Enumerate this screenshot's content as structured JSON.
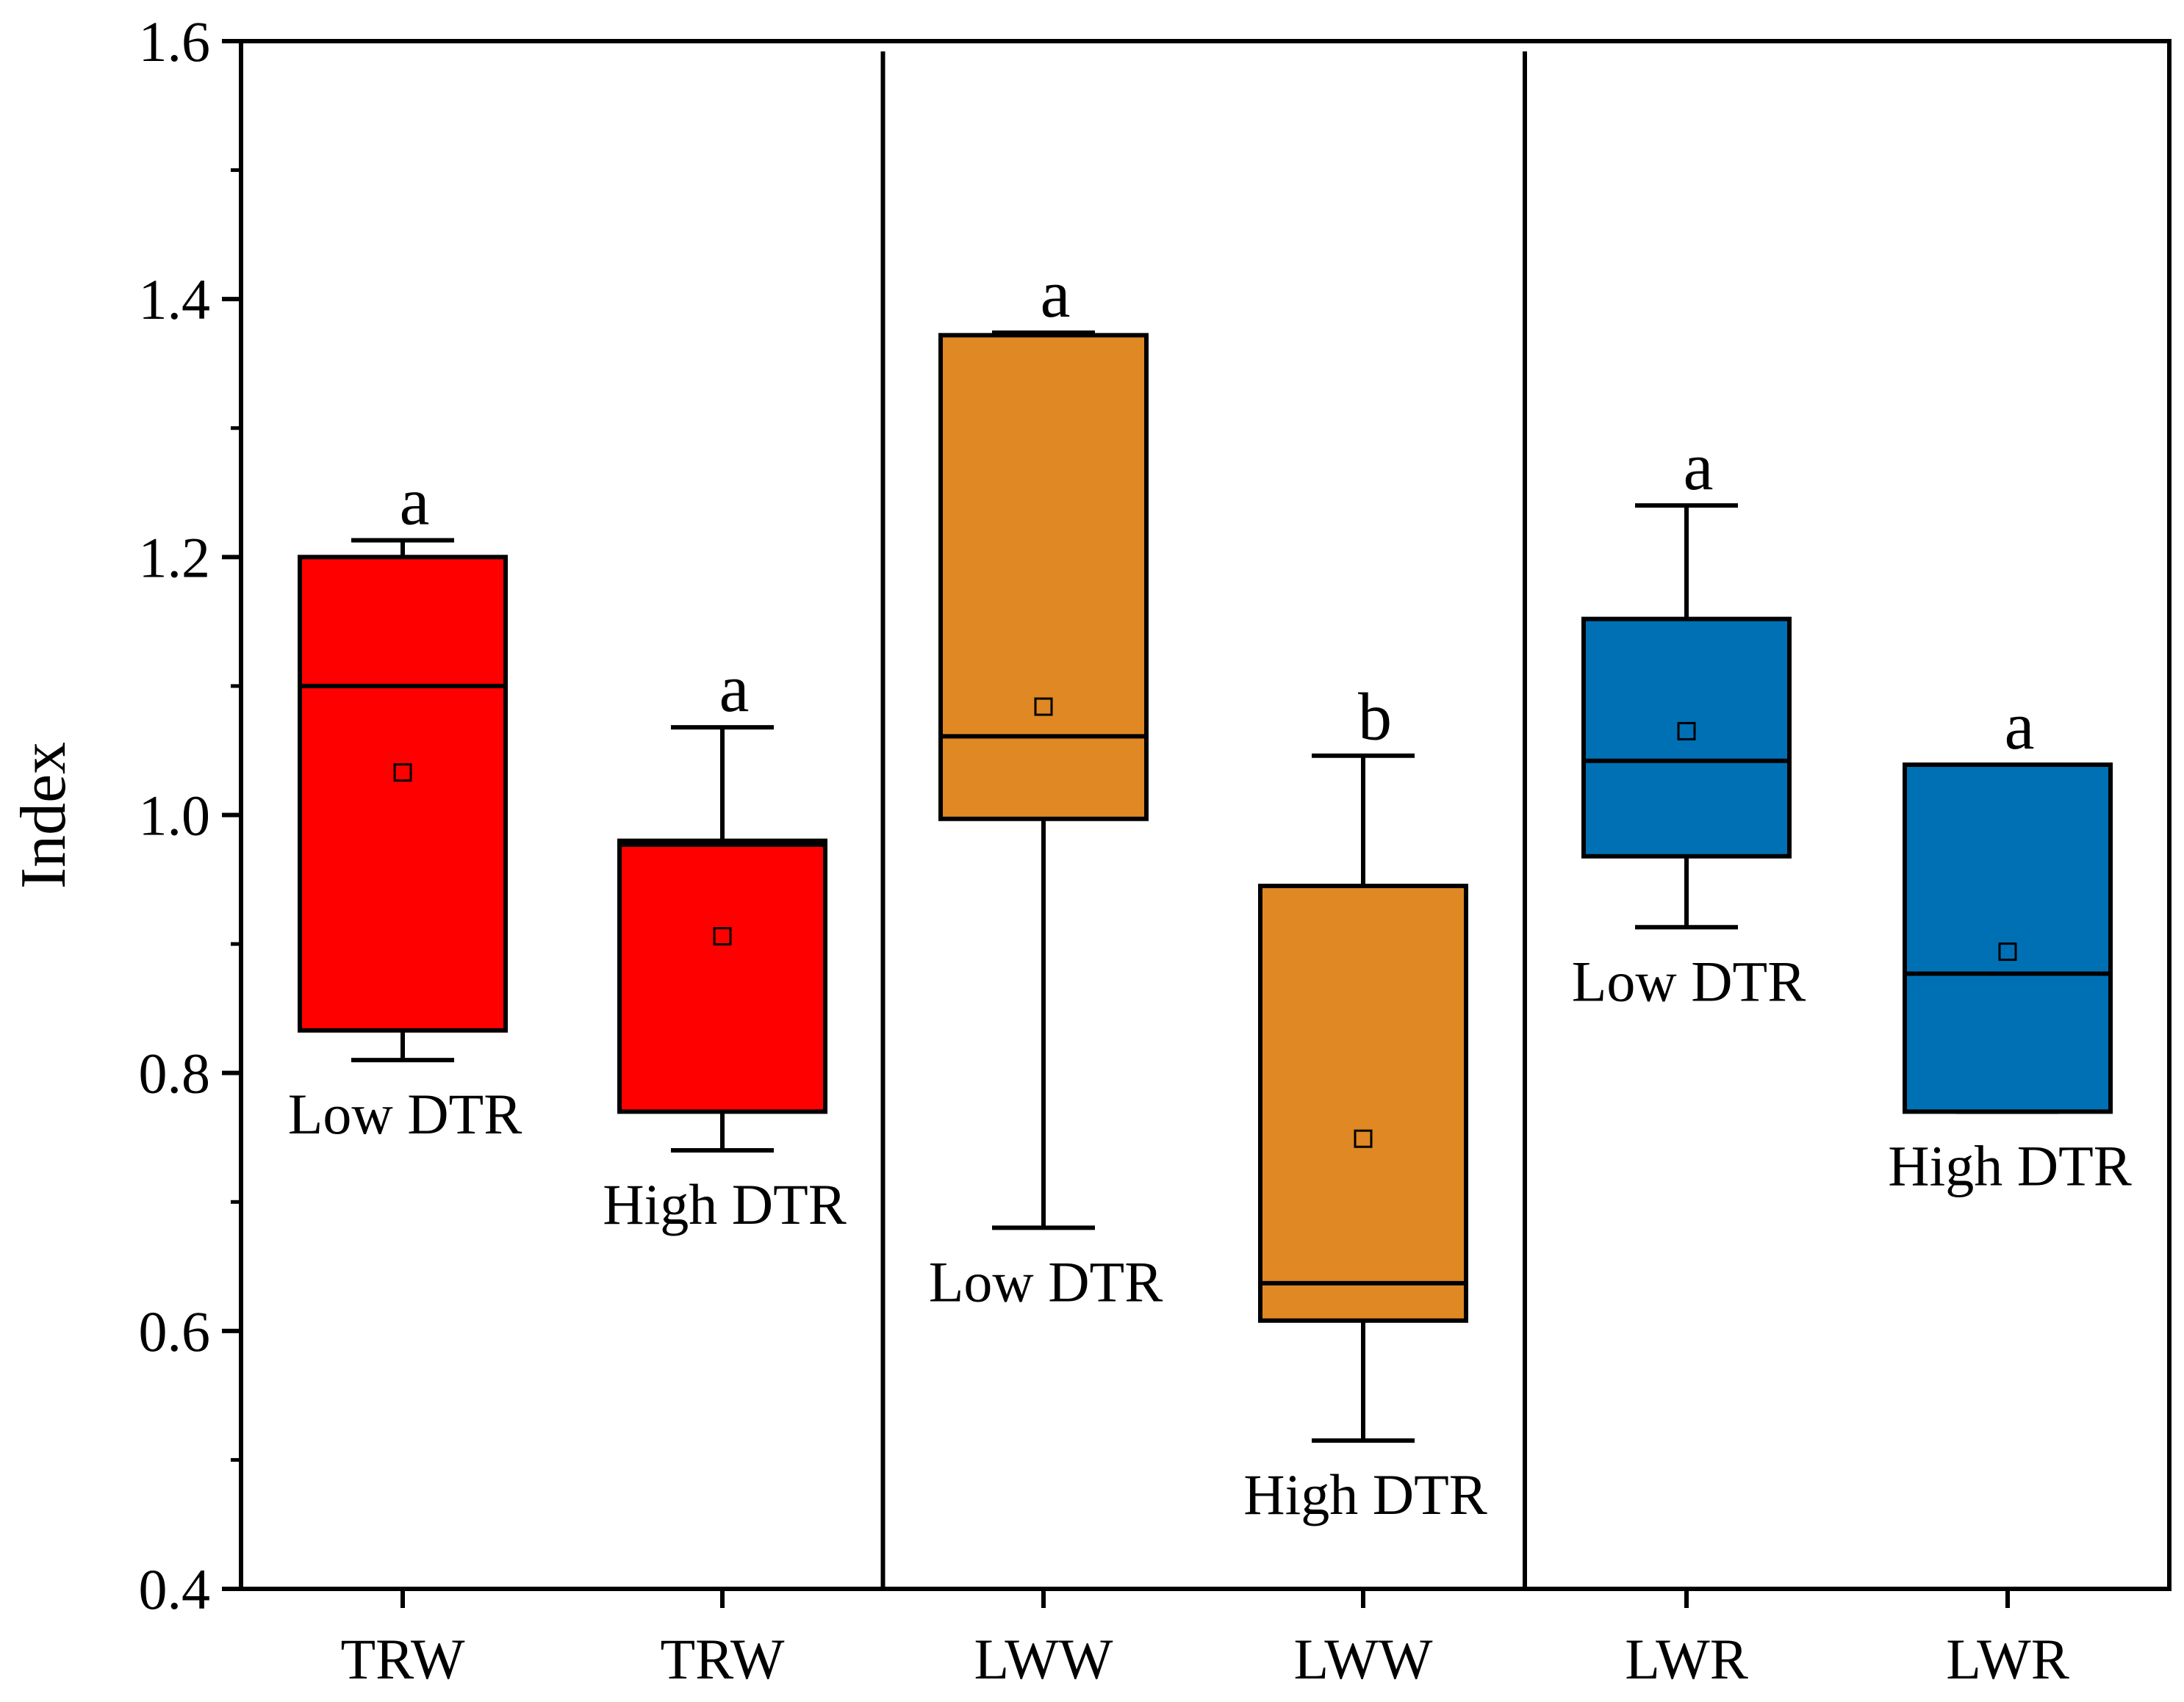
{
  "chart_data": {
    "type": "box",
    "title": "",
    "xlabel": "",
    "ylabel": "Index",
    "ylim": [
      0.4,
      1.6
    ],
    "yticks": [
      0.4,
      0.6,
      0.8,
      1.0,
      1.2,
      1.4,
      1.6
    ],
    "ytick_labels": [
      "0.4",
      "0.6",
      "0.8",
      "1.0",
      "1.2",
      "1.4",
      "1.6"
    ],
    "minor_tick_step": 0.1,
    "grid": false,
    "panel_dividers_after": [
      1,
      3
    ],
    "boxes": [
      {
        "category": "TRW",
        "group": "Low DTR",
        "sig": "a",
        "color": "#ff0000",
        "whisker_low": 0.81,
        "q1": 0.833,
        "median": 1.1,
        "q3": 1.2,
        "whisker_high": 1.213,
        "mean": 1.033,
        "label_position": "below"
      },
      {
        "category": "TRW",
        "group": "High DTR",
        "sig": "a",
        "color": "#ff0000",
        "whisker_low": 0.74,
        "q1": 0.77,
        "median": 0.977,
        "q3": 0.98,
        "whisker_high": 1.068,
        "mean": 0.906,
        "label_position": "below"
      },
      {
        "category": "LWW",
        "group": "Low DTR",
        "sig": "a",
        "color": "#e08823",
        "whisker_low": 0.68,
        "q1": 0.997,
        "median": 1.061,
        "q3": 1.372,
        "whisker_high": 1.374,
        "mean": 1.084,
        "label_position": "below"
      },
      {
        "category": "LWW",
        "group": "High DTR",
        "sig": "b",
        "color": "#e08823",
        "whisker_low": 0.515,
        "q1": 0.608,
        "median": 0.637,
        "q3": 0.945,
        "whisker_high": 1.046,
        "mean": 0.749,
        "label_position": "below"
      },
      {
        "category": "LWR",
        "group": "Low DTR",
        "sig": "a",
        "color": "#0070b5",
        "whisker_low": 0.913,
        "q1": 0.968,
        "median": 1.042,
        "q3": 1.152,
        "whisker_high": 1.24,
        "mean": 1.065,
        "label_position": "below"
      },
      {
        "category": "LWR",
        "group": "High DTR",
        "sig": "a",
        "color": "#0070b5",
        "whisker_low": 0.77,
        "q1": 0.77,
        "median": 0.877,
        "q3": 1.039,
        "whisker_high": 1.039,
        "mean": 0.894,
        "label_position": "below"
      }
    ]
  }
}
